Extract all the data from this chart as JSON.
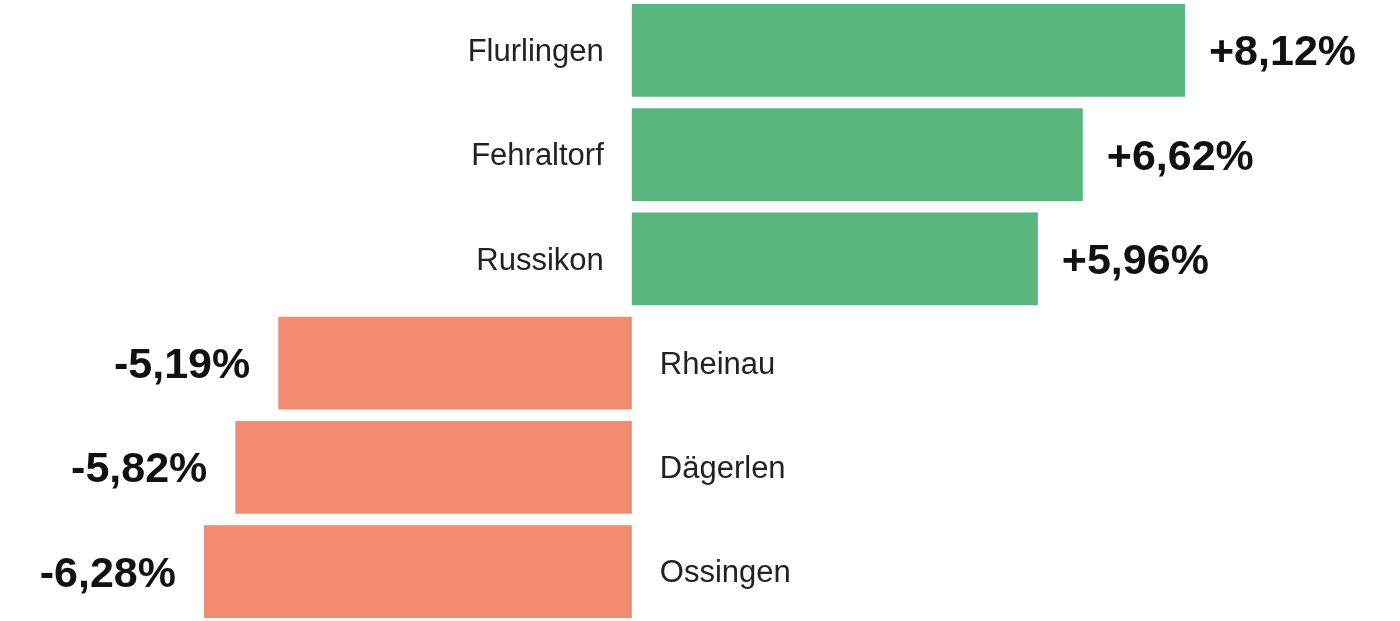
{
  "chart_data": {
    "type": "bar",
    "orientation": "horizontal",
    "categories": [
      "Flurlingen",
      "Fehraltorf",
      "Russikon",
      "Rheinau",
      "Dägerlen",
      "Ossingen"
    ],
    "values": [
      8.12,
      6.62,
      5.96,
      -5.19,
      -5.82,
      -6.28
    ],
    "colors": [
      "#5bb57e",
      "#5bb57e",
      "#5bb57e",
      "#f28c70",
      "#f28c70",
      "#f28c70"
    ],
    "value_labels": [
      "+8,12%",
      "+6,62%",
      "+5,96%",
      "-5,19%",
      "-5,82%",
      "-6,28%"
    ]
  }
}
